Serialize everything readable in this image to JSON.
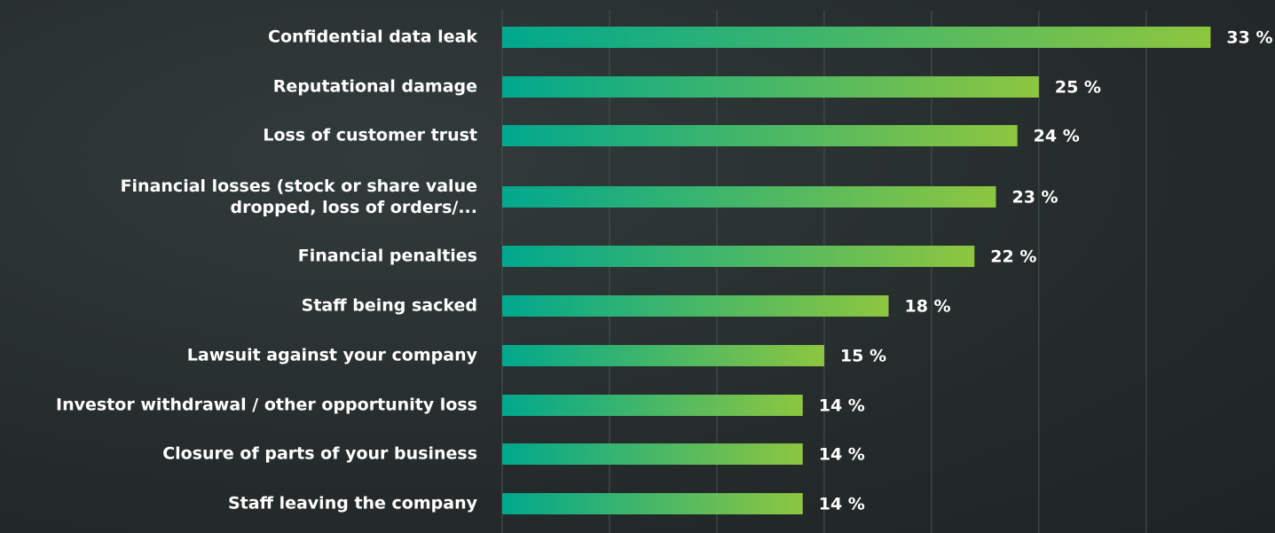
{
  "chart_data": {
    "type": "hbar",
    "categories": [
      "Confidential data leak",
      "Reputational damage",
      "Loss of customer trust",
      "Financial losses (stock or share value\ndropped, loss of orders/...",
      "Financial penalties",
      "Staff being sacked",
      "Lawsuit against your company",
      "Investor withdrawal / other opportunity loss",
      "Closure of parts of your business",
      "Staff leaving the company"
    ],
    "values": [
      33,
      25,
      24,
      23,
      22,
      18,
      15,
      14,
      14,
      14
    ],
    "value_labels": [
      "33 %",
      "25 %",
      "24 %",
      "23 %",
      "22 %",
      "18 %",
      "15 %",
      "14 %",
      "14 %",
      "14 %"
    ],
    "colors": [
      "#00a88e",
      "#8dc63f"
    ],
    "xlim": [
      0,
      36
    ],
    "xticks": [
      0,
      5,
      10,
      15,
      20,
      25,
      30
    ],
    "grid": true
  }
}
